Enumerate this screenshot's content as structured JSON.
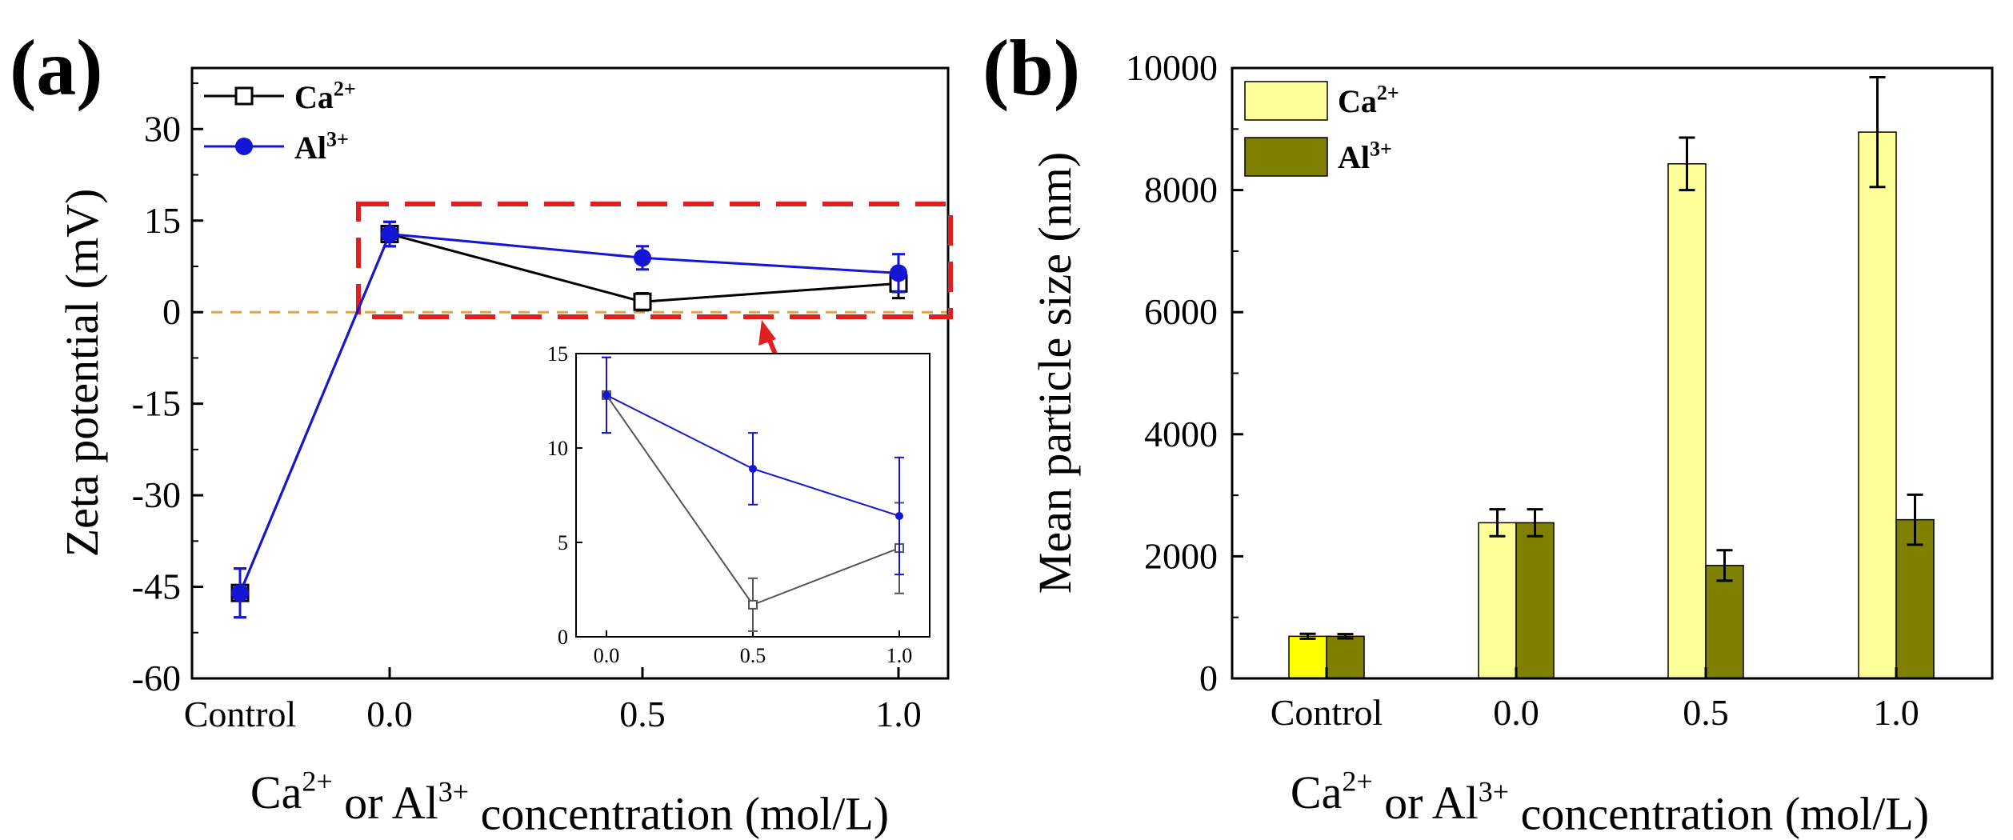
{
  "chart_data": [
    {
      "panel_label": "(a)",
      "type": "line",
      "xlabel_parts": [
        "Ca",
        "2+",
        " or Al",
        "3+",
        " concentration (mol/L)"
      ],
      "ylabel": "Zeta potential (mV)",
      "categories": [
        "Control",
        "0.0",
        "0.5",
        "1.0"
      ],
      "yticks": [
        "30",
        "15",
        "0",
        "-15",
        "-30",
        "-45",
        "-60"
      ],
      "ylim": [
        -60,
        40
      ],
      "grid": false,
      "legend_position": "top-left",
      "reference_line": {
        "y": 0,
        "style": "dashed",
        "color": "#f0a030"
      },
      "series": [
        {
          "name": "Ca",
          "name_sup": "2+",
          "marker": "open-square",
          "color": "#000000",
          "values": [
            -46,
            12.8,
            1.7,
            4.7
          ],
          "errors": [
            4,
            2,
            1.4,
            2.4
          ]
        },
        {
          "name": "Al",
          "name_sup": "3+",
          "marker": "filled-circle",
          "color": "#1515d6",
          "values": [
            -46,
            12.8,
            8.9,
            6.4
          ],
          "errors": [
            4,
            2,
            1.9,
            3.1
          ]
        }
      ],
      "highlight_box": {
        "color": "#e02020",
        "style": "dashed"
      },
      "inset": {
        "x": [
          0.0,
          0.5,
          1.0
        ],
        "xticks": [
          "0.0",
          "0.5",
          "1.0"
        ],
        "yticks": [
          "0",
          "5",
          "10",
          "15"
        ],
        "ylim": [
          0,
          15
        ],
        "series": [
          {
            "color": "#555555",
            "marker": "open-square",
            "values": [
              12.8,
              1.7,
              4.7
            ],
            "errors": [
              2,
              1.4,
              2.4
            ]
          },
          {
            "color": "#1515d6",
            "marker": "filled-circle",
            "values": [
              12.8,
              8.9,
              6.4
            ],
            "errors": [
              2,
              1.9,
              3.1
            ]
          }
        ]
      }
    },
    {
      "panel_label": "(b)",
      "type": "bar",
      "xlabel_parts": [
        "Ca",
        "2+",
        " or Al",
        "3+",
        " concentration (mol/L)"
      ],
      "ylabel": "Mean particle size (nm)",
      "categories": [
        "Control",
        "0.0",
        "0.5",
        "1.0"
      ],
      "yticks": [
        "0",
        "2000",
        "4000",
        "6000",
        "8000",
        "10000"
      ],
      "ylim": [
        0,
        10000
      ],
      "grid": false,
      "legend_position": "top-left",
      "series": [
        {
          "name": "Ca",
          "name_sup": "2+",
          "color": "#ffff99",
          "color_control": "#ffff00",
          "values": [
            690,
            2550,
            8430,
            8950
          ],
          "errors": [
            40,
            220,
            430,
            900
          ]
        },
        {
          "name": "Al",
          "name_sup": "3+",
          "color": "#7f7f00",
          "values": [
            690,
            2550,
            1850,
            2600
          ],
          "errors": [
            35,
            220,
            250,
            410
          ]
        }
      ]
    }
  ]
}
